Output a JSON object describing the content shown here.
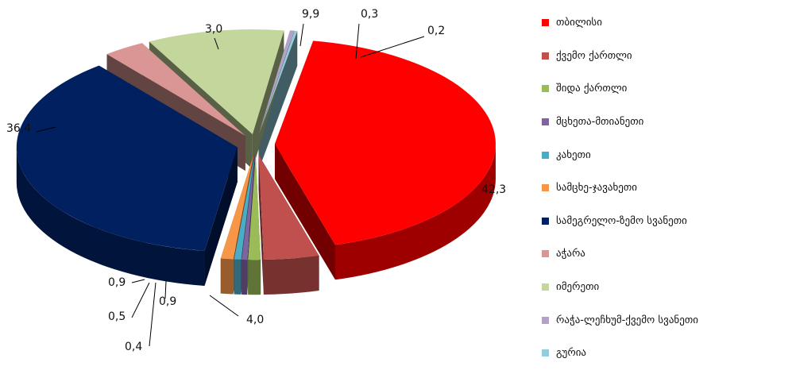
{
  "chart_data": {
    "type": "pie",
    "style": "3d-exploded",
    "legend_position": "right",
    "slices": [
      {
        "name": "თბილისი",
        "value": 42.3,
        "label": "42,3",
        "color": "#ff0000"
      },
      {
        "name": "ქვემო ქართლი",
        "value": 4.0,
        "label": "4,0",
        "color": "#c0504d"
      },
      {
        "name": "შიდა ქართლი",
        "value": 0.9,
        "label": "0,9",
        "color": "#9bbb59"
      },
      {
        "name": "მცხეთა-მთიანეთი",
        "value": 0.4,
        "label": "0,4",
        "color": "#8064a2"
      },
      {
        "name": "კახეთი",
        "value": 0.5,
        "label": "0,5",
        "color": "#4bacc6"
      },
      {
        "name": "სამცხე-ჯავახეთი",
        "value": 0.9,
        "label": "0,9",
        "color": "#f79646"
      },
      {
        "name": "სამეგრელო-ზემო სვანეთი",
        "value": 36.4,
        "label": "36,4",
        "color": "#002060"
      },
      {
        "name": "აჭარა",
        "value": 3.0,
        "label": "3,0",
        "color": "#d99694"
      },
      {
        "name": "იმერეთი",
        "value": 9.9,
        "label": "9,9",
        "color": "#c3d69b"
      },
      {
        "name": "რაჭა-ლეჩხუმ-ქვემო სვანეთი",
        "value": 0.3,
        "label": "0,3",
        "color": "#b3a2c7"
      },
      {
        "name": "გურია",
        "value": 0.2,
        "label": "0,2",
        "color": "#93cddd"
      }
    ]
  }
}
